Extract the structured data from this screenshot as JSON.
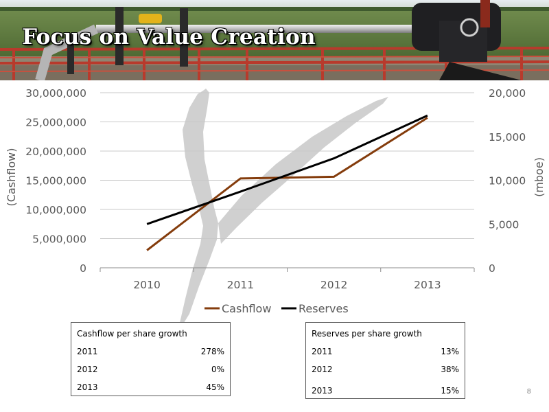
{
  "slide": {
    "title": "Focus on Value Creation",
    "page_number": "8"
  },
  "banner_icon": "wellhead-photo",
  "chart_data": {
    "type": "line",
    "categories": [
      "2010",
      "2011",
      "2012",
      "2013"
    ],
    "series": [
      {
        "name": "Cashflow",
        "axis": "left",
        "color": "#843c0c",
        "values": [
          3000000,
          15300000,
          15600000,
          25700000
        ]
      },
      {
        "name": "Reserves",
        "axis": "right",
        "color": "#000000",
        "values": [
          5000,
          8700,
          12500,
          17400
        ]
      }
    ],
    "y_left": {
      "label": "(Cashflow)",
      "ylim": [
        0,
        30000000
      ],
      "ticks": [
        "0",
        "5,000,000",
        "10,000,000",
        "15,000,000",
        "20,000,000",
        "25,000,000",
        "30,000,000"
      ]
    },
    "y_right": {
      "label": "(mboe)",
      "ylim": [
        0,
        20000
      ],
      "ticks": [
        "0",
        "5,000",
        "10,000",
        "15,000",
        "20,000"
      ]
    },
    "grid": true,
    "legend_position": "bottom"
  },
  "tables": [
    {
      "header": "Cashflow per share growth",
      "rows": [
        {
          "year": "2011",
          "value": "278%"
        },
        {
          "year": "2012",
          "value": "0%"
        },
        {
          "year": "2013",
          "value": "45%"
        }
      ]
    },
    {
      "header": "Reserves per share growth",
      "rows": [
        {
          "year": "2011",
          "value": "13%"
        },
        {
          "year": "2012",
          "value": "38%"
        },
        {
          "year": "2013",
          "value": "15%"
        }
      ]
    }
  ]
}
